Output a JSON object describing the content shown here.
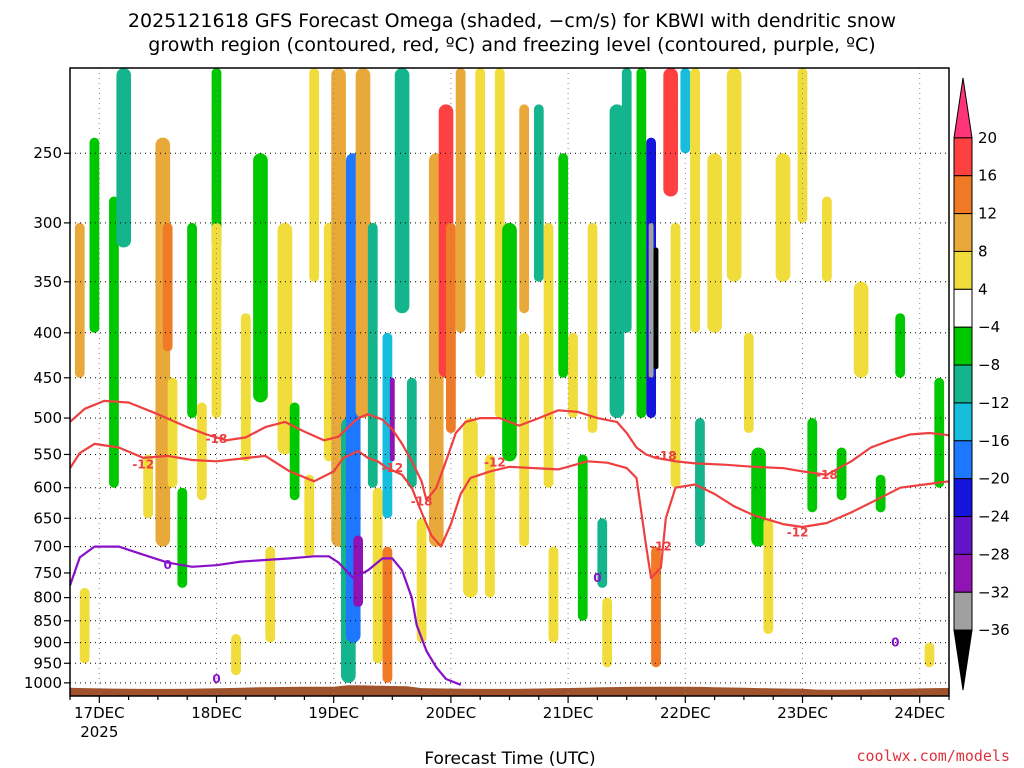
{
  "chart_data": {
    "type": "heatmap",
    "title_line1": "2025121618 GFS Forecast Omega (shaded, −cm/s) for KBWI with dendritic snow",
    "title_line2": "growth region (contoured, red, ºC) and freezing level (contoured, purple, ºC)",
    "xlabel": "Forecast Time (UTC)",
    "x_ticks": [
      {
        "label": "17DEC",
        "sublabel": "2025",
        "t": 6
      },
      {
        "label": "18DEC",
        "t": 30
      },
      {
        "label": "19DEC",
        "t": 54
      },
      {
        "label": "20DEC",
        "t": 78
      },
      {
        "label": "21DEC",
        "t": 102
      },
      {
        "label": "22DEC",
        "t": 126
      },
      {
        "label": "23DEC",
        "t": 150
      },
      {
        "label": "24DEC",
        "t": 174
      }
    ],
    "x_range_hours": [
      0,
      180
    ],
    "y_ticks": [
      250,
      300,
      350,
      400,
      450,
      500,
      550,
      600,
      650,
      700,
      750,
      800,
      850,
      900,
      950,
      1000
    ],
    "y_range_hPa": [
      200,
      1035
    ],
    "y_scale": "log",
    "colorbar": {
      "labels": [
        "20",
        "16",
        "12",
        "8",
        "4",
        "−4",
        "−8",
        "−12",
        "−16",
        "−20",
        "−24",
        "−28",
        "−32",
        "−36"
      ],
      "colors": [
        "#ff3377",
        "#ff4040",
        "#f07a25",
        "#e8a83a",
        "#f0dc3a",
        "#ffffff",
        "#00c800",
        "#14b48c",
        "#14bedc",
        "#1e78ff",
        "#1414dc",
        "#6414c8",
        "#9014b4",
        "#a0a0a0",
        "#000000"
      ]
    },
    "omega_patches": [
      {
        "t": 2,
        "p0": 300,
        "p1": 450,
        "dt": 2,
        "v": 8
      },
      {
        "t": 3,
        "p0": 780,
        "p1": 950,
        "dt": 2,
        "v": 6
      },
      {
        "t": 5,
        "p0": 240,
        "p1": 400,
        "dt": 2,
        "v": -6
      },
      {
        "t": 9,
        "p0": 280,
        "p1": 600,
        "dt": 2,
        "v": -6
      },
      {
        "t": 11,
        "p0": 200,
        "p1": 320,
        "dt": 3,
        "v": -8
      },
      {
        "t": 16,
        "p0": 550,
        "p1": 650,
        "dt": 2,
        "v": 4
      },
      {
        "t": 19,
        "p0": 240,
        "p1": 700,
        "dt": 3,
        "v": 8
      },
      {
        "t": 20,
        "p0": 300,
        "p1": 420,
        "dt": 2,
        "v": 14
      },
      {
        "t": 21,
        "p0": 450,
        "p1": 600,
        "dt": 2,
        "v": 6
      },
      {
        "t": 23,
        "p0": 600,
        "p1": 780,
        "dt": 2,
        "v": -6
      },
      {
        "t": 25,
        "p0": 300,
        "p1": 500,
        "dt": 2,
        "v": -6
      },
      {
        "t": 27,
        "p0": 480,
        "p1": 620,
        "dt": 2,
        "v": 5
      },
      {
        "t": 30,
        "p0": 200,
        "p1": 320,
        "dt": 2,
        "v": -6
      },
      {
        "t": 30,
        "p0": 300,
        "p1": 500,
        "dt": 2,
        "v": 5
      },
      {
        "t": 34,
        "p0": 880,
        "p1": 980,
        "dt": 2,
        "v": 5
      },
      {
        "t": 36,
        "p0": 380,
        "p1": 560,
        "dt": 2,
        "v": 6
      },
      {
        "t": 39,
        "p0": 250,
        "p1": 480,
        "dt": 3,
        "v": -6
      },
      {
        "t": 41,
        "p0": 700,
        "p1": 900,
        "dt": 2,
        "v": 5
      },
      {
        "t": 44,
        "p0": 300,
        "p1": 550,
        "dt": 3,
        "v": 6
      },
      {
        "t": 46,
        "p0": 480,
        "p1": 620,
        "dt": 2,
        "v": -6
      },
      {
        "t": 49,
        "p0": 580,
        "p1": 720,
        "dt": 2,
        "v": 5
      },
      {
        "t": 50,
        "p0": 200,
        "p1": 350,
        "dt": 2,
        "v": 6
      },
      {
        "t": 53,
        "p0": 300,
        "p1": 560,
        "dt": 2,
        "v": 5
      },
      {
        "t": 55,
        "p0": 200,
        "p1": 700,
        "dt": 3,
        "v": 10
      },
      {
        "t": 57,
        "p0": 500,
        "p1": 1000,
        "dt": 3,
        "v": -8
      },
      {
        "t": 58,
        "p0": 250,
        "p1": 900,
        "dt": 3,
        "v": -16
      },
      {
        "t": 59,
        "p0": 680,
        "p1": 820,
        "dt": 2,
        "v": -30
      },
      {
        "t": 60,
        "p0": 200,
        "p1": 500,
        "dt": 3,
        "v": 8
      },
      {
        "t": 62,
        "p0": 300,
        "p1": 600,
        "dt": 2,
        "v": -10
      },
      {
        "t": 63,
        "p0": 600,
        "p1": 950,
        "dt": 2,
        "v": 6
      },
      {
        "t": 65,
        "p0": 400,
        "p1": 650,
        "dt": 2,
        "v": -12
      },
      {
        "t": 65,
        "p0": 700,
        "p1": 1000,
        "dt": 2,
        "v": 14
      },
      {
        "t": 66,
        "p0": 450,
        "p1": 560,
        "dt": 1,
        "v": -30
      },
      {
        "t": 68,
        "p0": 200,
        "p1": 380,
        "dt": 3,
        "v": -8
      },
      {
        "t": 70,
        "p0": 450,
        "p1": 600,
        "dt": 2,
        "v": -8
      },
      {
        "t": 72,
        "p0": 650,
        "p1": 900,
        "dt": 2,
        "v": 5
      },
      {
        "t": 75,
        "p0": 250,
        "p1": 700,
        "dt": 3,
        "v": 8
      },
      {
        "t": 77,
        "p0": 220,
        "p1": 450,
        "dt": 3,
        "v": 18
      },
      {
        "t": 78,
        "p0": 300,
        "p1": 520,
        "dt": 2,
        "v": 14
      },
      {
        "t": 80,
        "p0": 200,
        "p1": 400,
        "dt": 2,
        "v": 8
      },
      {
        "t": 82,
        "p0": 500,
        "p1": 800,
        "dt": 3,
        "v": 5
      },
      {
        "t": 84,
        "p0": 200,
        "p1": 450,
        "dt": 2,
        "v": 6
      },
      {
        "t": 86,
        "p0": 550,
        "p1": 800,
        "dt": 2,
        "v": 5
      },
      {
        "t": 88,
        "p0": 200,
        "p1": 500,
        "dt": 2,
        "v": 6
      },
      {
        "t": 90,
        "p0": 300,
        "p1": 560,
        "dt": 3,
        "v": -6
      },
      {
        "t": 93,
        "p0": 220,
        "p1": 380,
        "dt": 2,
        "v": 10
      },
      {
        "t": 93,
        "p0": 400,
        "p1": 700,
        "dt": 2,
        "v": 6
      },
      {
        "t": 96,
        "p0": 220,
        "p1": 350,
        "dt": 2,
        "v": -10
      },
      {
        "t": 98,
        "p0": 300,
        "p1": 600,
        "dt": 2,
        "v": 5
      },
      {
        "t": 99,
        "p0": 700,
        "p1": 900,
        "dt": 2,
        "v": 6
      },
      {
        "t": 101,
        "p0": 250,
        "p1": 450,
        "dt": 2,
        "v": -6
      },
      {
        "t": 103,
        "p0": 400,
        "p1": 500,
        "dt": 2,
        "v": 5
      },
      {
        "t": 105,
        "p0": 550,
        "p1": 850,
        "dt": 2,
        "v": -6
      },
      {
        "t": 107,
        "p0": 300,
        "p1": 520,
        "dt": 2,
        "v": 6
      },
      {
        "t": 109,
        "p0": 650,
        "p1": 780,
        "dt": 2,
        "v": -8
      },
      {
        "t": 110,
        "p0": 800,
        "p1": 960,
        "dt": 2,
        "v": 5
      },
      {
        "t": 112,
        "p0": 220,
        "p1": 500,
        "dt": 3,
        "v": -8
      },
      {
        "t": 114,
        "p0": 200,
        "p1": 400,
        "dt": 2,
        "v": -10
      },
      {
        "t": 117,
        "p0": 200,
        "p1": 500,
        "dt": 2,
        "v": -6
      },
      {
        "t": 119,
        "p0": 240,
        "p1": 500,
        "dt": 2,
        "v": -20
      },
      {
        "t": 119,
        "p0": 300,
        "p1": 450,
        "dt": 1,
        "v": -32
      },
      {
        "t": 120,
        "p0": 320,
        "p1": 440,
        "dt": 1,
        "v": -40
      },
      {
        "t": 120,
        "p0": 700,
        "p1": 960,
        "dt": 2,
        "v": 14
      },
      {
        "t": 123,
        "p0": 200,
        "p1": 280,
        "dt": 3,
        "v": 16
      },
      {
        "t": 124,
        "p0": 300,
        "p1": 600,
        "dt": 2,
        "v": 6
      },
      {
        "t": 126,
        "p0": 200,
        "p1": 250,
        "dt": 2,
        "v": -12
      },
      {
        "t": 128,
        "p0": 200,
        "p1": 400,
        "dt": 2,
        "v": 6
      },
      {
        "t": 129,
        "p0": 500,
        "p1": 700,
        "dt": 2,
        "v": -8
      },
      {
        "t": 132,
        "p0": 250,
        "p1": 400,
        "dt": 3,
        "v": 6
      },
      {
        "t": 136,
        "p0": 200,
        "p1": 350,
        "dt": 3,
        "v": 6
      },
      {
        "t": 139,
        "p0": 400,
        "p1": 520,
        "dt": 2,
        "v": 5
      },
      {
        "t": 141,
        "p0": 540,
        "p1": 700,
        "dt": 3,
        "v": -6
      },
      {
        "t": 143,
        "p0": 650,
        "p1": 880,
        "dt": 2,
        "v": 5
      },
      {
        "t": 146,
        "p0": 250,
        "p1": 350,
        "dt": 3,
        "v": 6
      },
      {
        "t": 150,
        "p0": 200,
        "p1": 300,
        "dt": 2,
        "v": 5
      },
      {
        "t": 152,
        "p0": 500,
        "p1": 640,
        "dt": 2,
        "v": -6
      },
      {
        "t": 155,
        "p0": 280,
        "p1": 350,
        "dt": 2,
        "v": 6
      },
      {
        "t": 158,
        "p0": 540,
        "p1": 620,
        "dt": 2,
        "v": -6
      },
      {
        "t": 162,
        "p0": 350,
        "p1": 450,
        "dt": 3,
        "v": 6
      },
      {
        "t": 166,
        "p0": 580,
        "p1": 640,
        "dt": 2,
        "v": -6
      },
      {
        "t": 170,
        "p0": 380,
        "p1": 450,
        "dt": 2,
        "v": -6
      },
      {
        "t": 176,
        "p0": 900,
        "p1": 960,
        "dt": 2,
        "v": 6
      },
      {
        "t": 178,
        "p0": 450,
        "p1": 600,
        "dt": 2,
        "v": -6
      }
    ],
    "contours": [
      {
        "name": "contour-dgz-minus12",
        "color": "#ee4040",
        "labels": [
          {
            "text": "-12",
            "t": 15,
            "p": 565
          },
          {
            "text": "-12",
            "t": 66,
            "p": 570
          },
          {
            "text": "-12",
            "t": 87,
            "p": 562
          },
          {
            "text": "-12",
            "t": 121,
            "p": 700
          },
          {
            "text": "-12",
            "t": 149,
            "p": 675
          }
        ],
        "points": [
          [
            0,
            570
          ],
          [
            2,
            548
          ],
          [
            5,
            535
          ],
          [
            10,
            540
          ],
          [
            15,
            555
          ],
          [
            20,
            552
          ],
          [
            25,
            558
          ],
          [
            30,
            560
          ],
          [
            35,
            556
          ],
          [
            40,
            552
          ],
          [
            45,
            575
          ],
          [
            50,
            590
          ],
          [
            54,
            575
          ],
          [
            56,
            555
          ],
          [
            59,
            545
          ],
          [
            61,
            555
          ],
          [
            63,
            560
          ],
          [
            65,
            570
          ],
          [
            68,
            580
          ],
          [
            70,
            600
          ],
          [
            72,
            640
          ],
          [
            74,
            680
          ],
          [
            76,
            700
          ],
          [
            78,
            660
          ],
          [
            80,
            610
          ],
          [
            82,
            585
          ],
          [
            86,
            575
          ],
          [
            90,
            568
          ],
          [
            95,
            570
          ],
          [
            100,
            572
          ],
          [
            106,
            560
          ],
          [
            110,
            562
          ],
          [
            114,
            570
          ],
          [
            116,
            585
          ],
          [
            118,
            700
          ],
          [
            119,
            760
          ],
          [
            121,
            740
          ],
          [
            122,
            650
          ],
          [
            124,
            600
          ],
          [
            128,
            595
          ],
          [
            132,
            610
          ],
          [
            136,
            630
          ],
          [
            140,
            645
          ],
          [
            146,
            660
          ],
          [
            150,
            665
          ],
          [
            155,
            658
          ],
          [
            160,
            640
          ],
          [
            165,
            620
          ],
          [
            170,
            600
          ],
          [
            175,
            595
          ],
          [
            180,
            590
          ]
        ]
      },
      {
        "name": "contour-dgz-minus18",
        "color": "#ee4040",
        "labels": [
          {
            "text": "-18",
            "t": 30,
            "p": 528
          },
          {
            "text": "-18",
            "t": 72,
            "p": 622
          },
          {
            "text": "-18",
            "t": 122,
            "p": 552
          },
          {
            "text": "-18",
            "t": 155,
            "p": 580
          }
        ],
        "points": [
          [
            0,
            505
          ],
          [
            3,
            488
          ],
          [
            7,
            478
          ],
          [
            12,
            480
          ],
          [
            18,
            495
          ],
          [
            24,
            512
          ],
          [
            28,
            522
          ],
          [
            32,
            530
          ],
          [
            36,
            526
          ],
          [
            40,
            512
          ],
          [
            44,
            505
          ],
          [
            48,
            518
          ],
          [
            52,
            530
          ],
          [
            55,
            525
          ],
          [
            57,
            512
          ],
          [
            59,
            500
          ],
          [
            61,
            495
          ],
          [
            64,
            502
          ],
          [
            66,
            515
          ],
          [
            68,
            535
          ],
          [
            70,
            560
          ],
          [
            72,
            590
          ],
          [
            73,
            620
          ],
          [
            75,
            600
          ],
          [
            77,
            560
          ],
          [
            79,
            520
          ],
          [
            81,
            505
          ],
          [
            84,
            500
          ],
          [
            88,
            500
          ],
          [
            92,
            510
          ],
          [
            96,
            500
          ],
          [
            100,
            490
          ],
          [
            104,
            492
          ],
          [
            108,
            500
          ],
          [
            112,
            505
          ],
          [
            114,
            520
          ],
          [
            116,
            540
          ],
          [
            118,
            550
          ],
          [
            120,
            555
          ],
          [
            124,
            560
          ],
          [
            128,
            563
          ],
          [
            134,
            565
          ],
          [
            140,
            568
          ],
          [
            146,
            570
          ],
          [
            150,
            575
          ],
          [
            155,
            580
          ],
          [
            160,
            560
          ],
          [
            164,
            540
          ],
          [
            168,
            530
          ],
          [
            172,
            522
          ],
          [
            176,
            520
          ],
          [
            180,
            523
          ]
        ]
      },
      {
        "name": "contour-freezing-0",
        "color": "#8a10c8",
        "labels": [
          {
            "text": "0",
            "t": 20,
            "p": 735
          },
          {
            "text": "0",
            "t": 30,
            "p": 990
          },
          {
            "text": "0",
            "t": 108,
            "p": 760
          },
          {
            "text": "0",
            "t": 169,
            "p": 900
          }
        ],
        "points": [
          [
            0,
            775
          ],
          [
            2,
            720
          ],
          [
            5,
            700
          ],
          [
            10,
            700
          ],
          [
            15,
            715
          ],
          [
            20,
            730
          ],
          [
            25,
            738
          ],
          [
            30,
            735
          ],
          [
            35,
            728
          ],
          [
            40,
            725
          ],
          [
            45,
            722
          ],
          [
            50,
            718
          ],
          [
            53,
            718
          ],
          [
            55,
            730
          ],
          [
            58,
            760
          ],
          [
            61,
            745
          ],
          [
            64,
            722
          ],
          [
            66,
            722
          ],
          [
            68,
            745
          ],
          [
            70,
            800
          ],
          [
            71,
            860
          ],
          [
            73,
            920
          ],
          [
            75,
            960
          ],
          [
            77,
            990
          ],
          [
            80,
            1005
          ]
        ]
      }
    ]
  },
  "credit": "coolwx.com/models"
}
